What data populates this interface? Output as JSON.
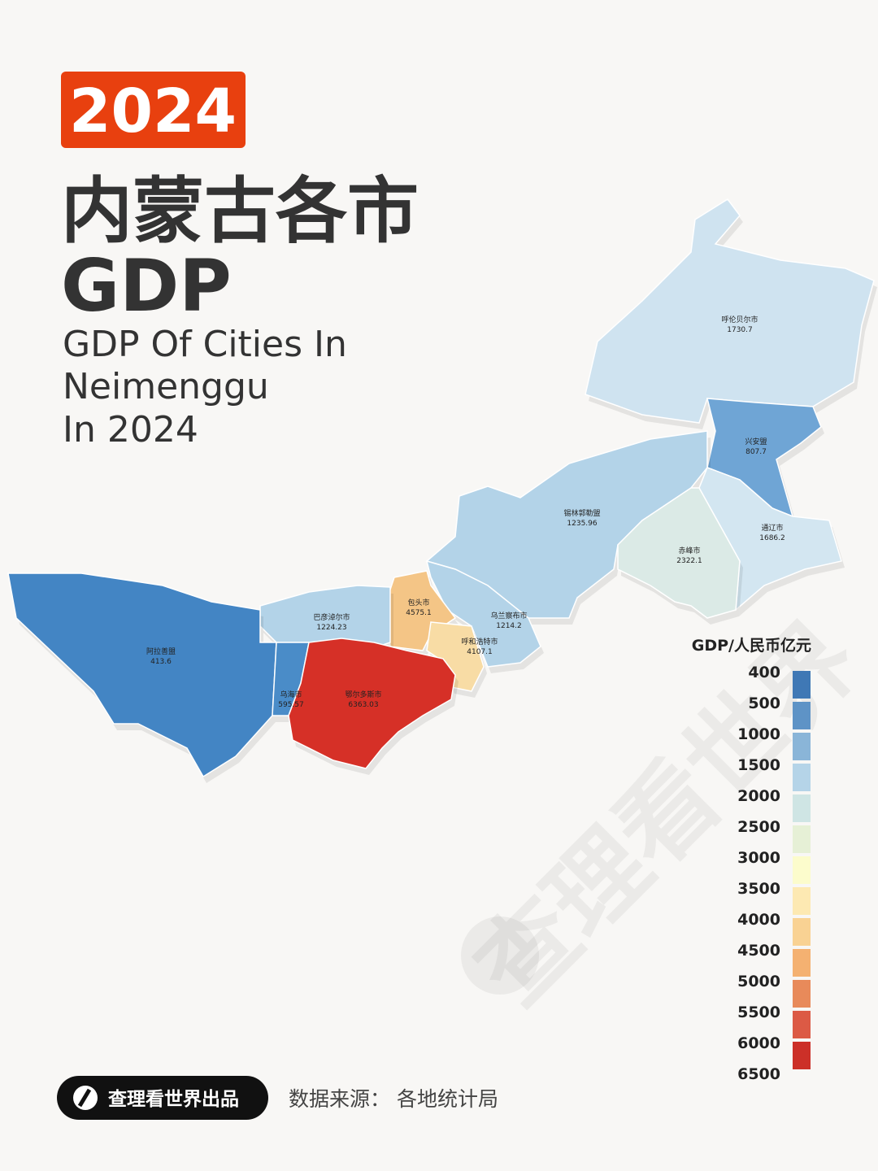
{
  "header": {
    "year": "2024",
    "title": "内蒙古各市",
    "title2": "GDP",
    "subtitle": [
      "GDP Of Cities In",
      "Neimenggu",
      "In 2024"
    ]
  },
  "regions": [
    {
      "name": "呼伦贝尔市",
      "value": 1730.7,
      "color": "#cfe3f0"
    },
    {
      "name": "兴安盟",
      "value": 807.7,
      "color": "#6fa5d5"
    },
    {
      "name": "锡林郭勒盟",
      "value": 1235.96,
      "color": "#b3d3e8"
    },
    {
      "name": "通辽市",
      "value": 1686.2,
      "color": "#d3e6f1"
    },
    {
      "name": "赤峰市",
      "value": 2322.1,
      "color": "#dbeae6"
    },
    {
      "name": "乌兰察布市",
      "value": 1214.2,
      "color": "#b3d3e8"
    },
    {
      "name": "包头市",
      "value": 4575.1,
      "color": "#f4c586"
    },
    {
      "name": "呼和浩特市",
      "value": 4107.1,
      "color": "#f8dca5"
    },
    {
      "name": "巴彦淖尔市",
      "value": 1224.23,
      "color": "#b3d3e8"
    },
    {
      "name": "阿拉善盟",
      "value": 413.6,
      "color": "#4385c4"
    },
    {
      "name": "乌海市",
      "value": 595.57,
      "color": "#4a8cc8"
    },
    {
      "name": "鄂尔多斯市",
      "value": 6363.03,
      "color": "#d63027"
    }
  ],
  "legend": {
    "title": "GDP/人民币亿元",
    "ticks": [
      400,
      500,
      1000,
      1500,
      2000,
      2500,
      3000,
      3500,
      4000,
      4500,
      5000,
      5500,
      6000,
      6500
    ],
    "colors": [
      "#3f78b5",
      "#5e93c6",
      "#8ab5d8",
      "#b5d4e8",
      "#cfe5e4",
      "#e6f0d6",
      "#fcfccc",
      "#fde9b2",
      "#f9d293",
      "#f4b171",
      "#e88a5a",
      "#dc5a45",
      "#cc3028"
    ]
  },
  "watermark": "查理看世界",
  "footer": {
    "brand": "查理看世界出品",
    "source": "数据来源： 各地统计局"
  }
}
